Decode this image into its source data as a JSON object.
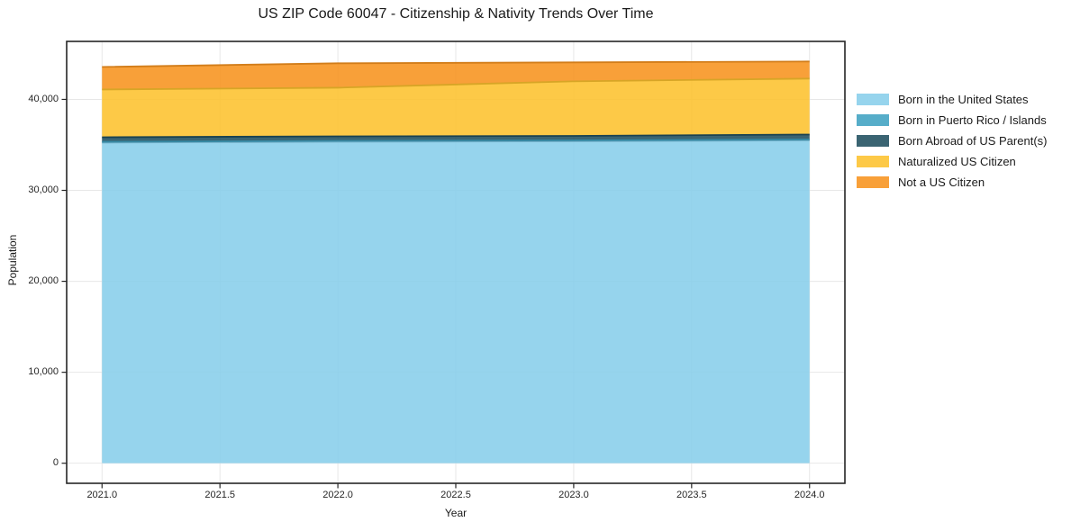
{
  "chart_data": {
    "type": "area",
    "stacked": true,
    "title": "US ZIP Code 60047 - Citizenship & Nativity Trends Over Time",
    "xlabel": "Year",
    "ylabel": "Population",
    "x": [
      2021,
      2022,
      2023,
      2024
    ],
    "series": [
      {
        "name": "Born in the United States",
        "color": "#87CEEB",
        "values": [
          35250,
          35350,
          35400,
          35500
        ]
      },
      {
        "name": "Born in Puerto Rico / Islands",
        "color": "#3FA2C2",
        "values": [
          90,
          90,
          90,
          90
        ]
      },
      {
        "name": "Born Abroad of US Parent(s)",
        "color": "#1F4E5F",
        "values": [
          500,
          500,
          500,
          550
        ]
      },
      {
        "name": "Naturalized US Citizen",
        "color": "#FDC22D",
        "values": [
          5250,
          5350,
          6000,
          6150
        ]
      },
      {
        "name": "Not a US Citizen",
        "color": "#F7931E",
        "values": [
          2480,
          2680,
          2080,
          1880
        ]
      }
    ],
    "x_tickvalues": [
      2021.0,
      2021.5,
      2022.0,
      2022.5,
      2023.0,
      2023.5,
      2024.0
    ],
    "x_ticklabels": [
      "2021.0",
      "2021.5",
      "2022.0",
      "2022.5",
      "2023.0",
      "2023.5",
      "2024.0"
    ],
    "y_tickvalues": [
      0,
      10000,
      20000,
      30000,
      40000
    ],
    "y_ticklabels": [
      "0",
      "10,000",
      "20,000",
      "30,000",
      "40,000"
    ],
    "xlim": [
      2020.85,
      2024.15
    ],
    "ylim": [
      -2208,
      46378
    ],
    "grid": true,
    "grid_color": "#e7e7e7",
    "spine_color": "#262626",
    "fill_alpha": 0.88,
    "legend_position": "right"
  }
}
